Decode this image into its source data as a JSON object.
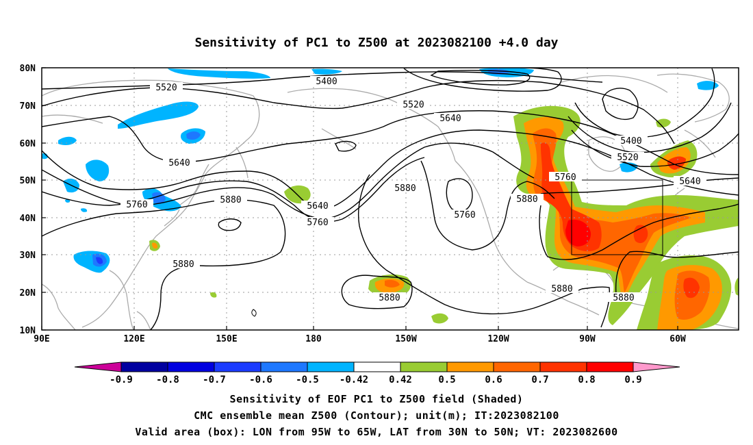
{
  "title": "Sensitivity of PC1 to Z500 at 2023082100 +4.0 day",
  "lat_ticks": [
    "80N",
    "70N",
    "60N",
    "50N",
    "40N",
    "30N",
    "20N",
    "10N"
  ],
  "lon_ticks": [
    "90E",
    "120E",
    "150E",
    "180",
    "150W",
    "120W",
    "90W",
    "60W"
  ],
  "contours": {
    "5400a": "5400",
    "5400b": "5400",
    "5520a": "5520",
    "5520b": "5520",
    "5520c": "5520",
    "5640a": "5640",
    "5640b": "5640",
    "5640c": "5640",
    "5640d": "5640",
    "5760a": "5760",
    "5760b": "5760",
    "5760c": "5760",
    "5760d": "5760",
    "5880a": "5880",
    "5880b": "5880",
    "5880c": "5880",
    "5880d": "5880",
    "5880e": "5880",
    "5880f": "5880",
    "5880g": "5880"
  },
  "colorbar": {
    "labels": [
      "-0.9",
      "-0.8",
      "-0.7",
      "-0.6",
      "-0.5",
      "-0.42",
      "0.42",
      "0.5",
      "0.6",
      "0.7",
      "0.8",
      "0.9"
    ],
    "colors": [
      "#0000a0",
      "#0000e0",
      "#1c3cff",
      "#1e78ff",
      "#00b4ff",
      "#ffffff",
      "#99cc33",
      "#ff9900",
      "#ff6600",
      "#ff3300",
      "#ff0000"
    ],
    "low_extend_color": "#cc0099",
    "high_extend_color": "#ff99cc"
  },
  "valid_box": {
    "lon_from": "95W",
    "lon_to": "65W",
    "lat_from": "30N",
    "lat_to": "50N"
  },
  "captions": {
    "line1": "Sensitivity of EOF PC1 to Z500 field (Shaded)",
    "line2": "CMC ensemble mean Z500 (Contour); unit(m); IT:2023082100",
    "line3": "Valid area (box): LON from 95W to 65W, LAT from 30N to 50N; VT: 2023082600"
  }
}
